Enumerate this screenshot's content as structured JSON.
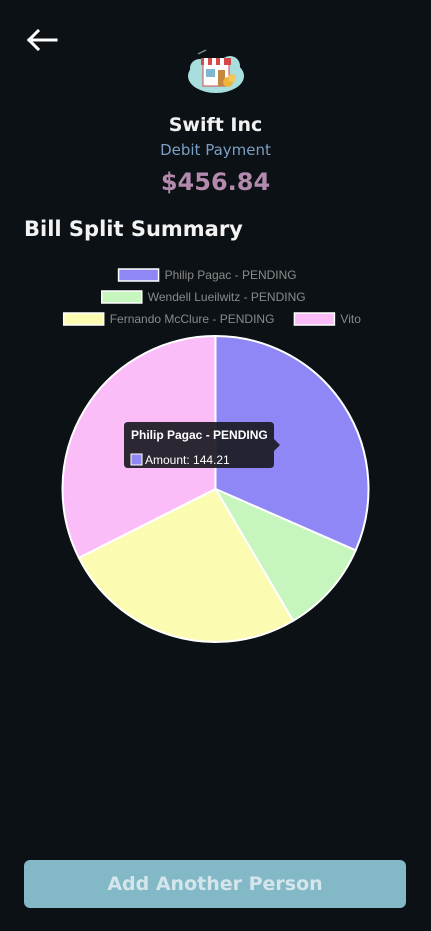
{
  "header": {
    "back_icon": "arrow-left-icon"
  },
  "merchant": {
    "logo_icon": "storefront-icon",
    "name": "Swift Inc",
    "payment_type": "Debit Payment",
    "amount": "$456.84"
  },
  "section_title": "Bill Split Summary",
  "chart_data": {
    "type": "pie",
    "legend_placement": "top",
    "slices": [
      {
        "label": "Philip Pagac - PENDING",
        "value": 144.21,
        "color": "#8f87f6"
      },
      {
        "label": "Wendell Lueilwitz - PENDING",
        "value": 45.5,
        "color": "#c6f6be"
      },
      {
        "label": "Fernando McClure - PENDING",
        "value": 119.0,
        "color": "#fbfbb1"
      },
      {
        "label": "Vito",
        "value": 148.13,
        "color": "#fbbdf8"
      }
    ],
    "tooltip": {
      "title": "Philip Pagac - PENDING",
      "body": "Amount: 144.21",
      "swatch_color": "#8f87f6"
    }
  },
  "actions": {
    "add_person_label": "Add Another Person"
  },
  "colors": {
    "background": "#0b1114",
    "accent_amount": "#b389ad",
    "payment_type": "#7b9fc4",
    "button": "#83b8c6"
  }
}
